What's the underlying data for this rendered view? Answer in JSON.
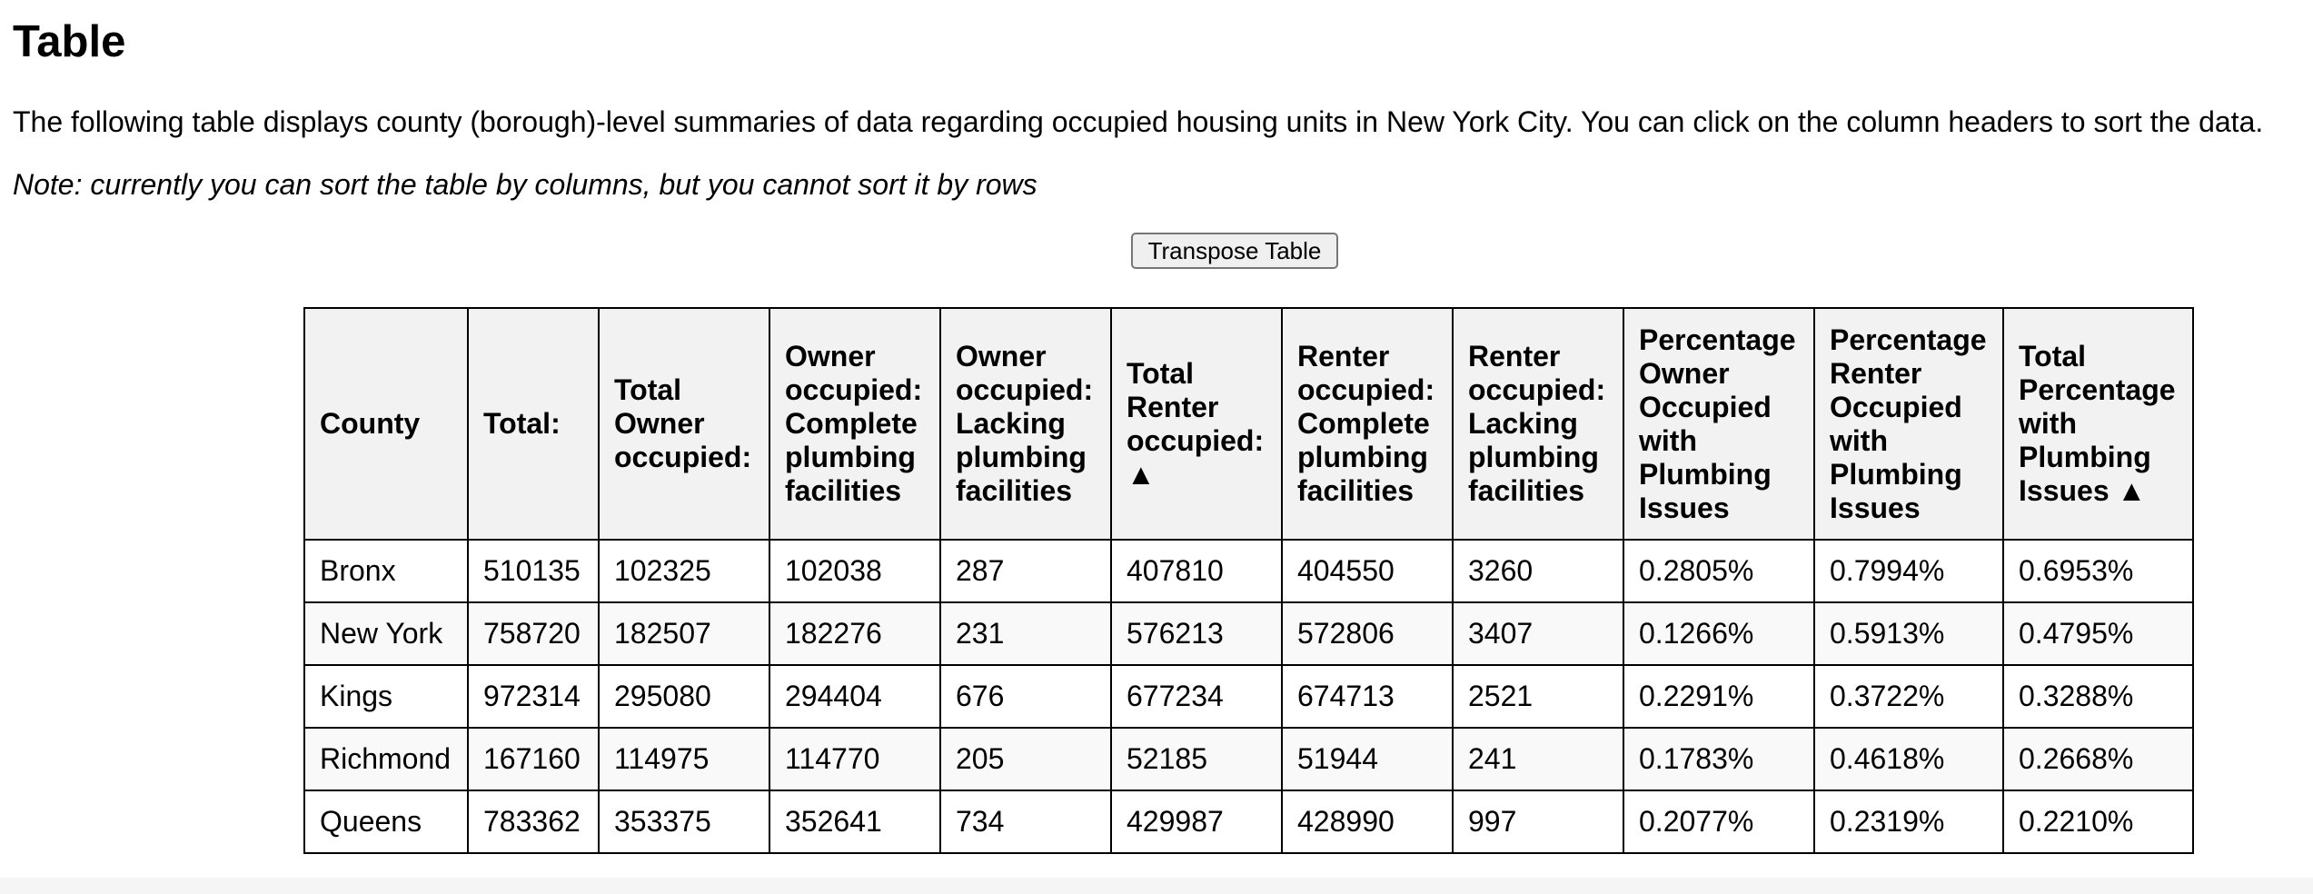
{
  "page": {
    "title": "Table",
    "intro": "The following table displays county (borough)-level summaries of data regarding occupied housing units in New York City. You can click on the column headers to sort the data.",
    "note": "Note: currently you can sort the table by columns, but you cannot sort it by rows",
    "transpose_label": "Transpose Table"
  },
  "table": {
    "headers": [
      "County",
      "Total:",
      "Total Owner occupied:",
      "Owner occupied: Complete plumbing facilities",
      "Owner occupied: Lacking plumbing facilities",
      "Total Renter occupied: ▲",
      "Renter occupied: Complete plumbing facilities",
      "Renter occupied: Lacking plumbing facilities",
      "Percentage Owner Occupied with Plumbing Issues",
      "Percentage Renter Occupied with Plumbing Issues",
      "Total Percentage with Plumbing Issues ▲"
    ],
    "rows": [
      [
        "Bronx",
        "510135",
        "102325",
        "102038",
        "287",
        "407810",
        "404550",
        "3260",
        "0.2805%",
        "0.7994%",
        "0.6953%"
      ],
      [
        "New York",
        "758720",
        "182507",
        "182276",
        "231",
        "576213",
        "572806",
        "3407",
        "0.1266%",
        "0.5913%",
        "0.4795%"
      ],
      [
        "Kings",
        "972314",
        "295080",
        "294404",
        "676",
        "677234",
        "674713",
        "2521",
        "0.2291%",
        "0.3722%",
        "0.3288%"
      ],
      [
        "Richmond",
        "167160",
        "114975",
        "114770",
        "205",
        "52185",
        "51944",
        "241",
        "0.1783%",
        "0.4618%",
        "0.2668%"
      ],
      [
        "Queens",
        "783362",
        "353375",
        "352641",
        "734",
        "429987",
        "428990",
        "997",
        "0.2077%",
        "0.2319%",
        "0.2210%"
      ]
    ]
  }
}
